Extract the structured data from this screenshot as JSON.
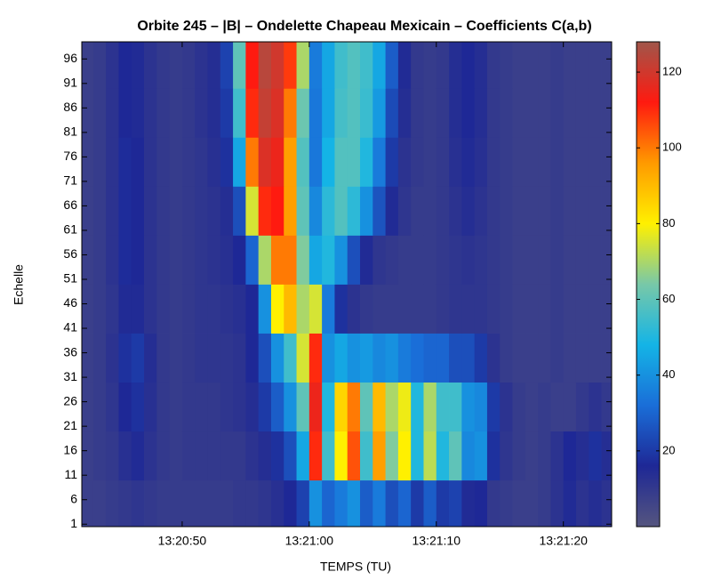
{
  "chart_data": {
    "type": "heatmap",
    "title": "Orbite 245 – |B| – Ondelette Chapeau Mexicain – Coefficients C(a,b)",
    "xlabel": "TEMPS (TU)",
    "ylabel": "Echelle",
    "xlim": [
      42.1,
      83.8
    ],
    "ylim": [
      0.5,
      99.5
    ],
    "xticks": [
      {
        "value": 50,
        "label": "13:20:50"
      },
      {
        "value": 60,
        "label": "13:21:00"
      },
      {
        "value": 70,
        "label": "13:21:10"
      },
      {
        "value": 80,
        "label": "13:21:20"
      }
    ],
    "yticks": [
      1,
      6,
      11,
      16,
      21,
      26,
      31,
      36,
      41,
      46,
      51,
      56,
      61,
      66,
      71,
      76,
      81,
      86,
      91,
      96
    ],
    "clim": [
      0,
      128
    ],
    "cticks": [
      20,
      40,
      60,
      80,
      100,
      120
    ],
    "colormap": [
      "#55557f",
      "#1e2896",
      "#1a6ed8",
      "#14b4e6",
      "#78c8a8",
      "#fff000",
      "#ff9a00",
      "#ff1a10",
      "#a0564a"
    ],
    "x_edges": [
      42,
      43,
      44,
      45,
      46,
      47,
      48,
      49,
      50,
      51,
      52,
      53,
      54,
      55,
      56,
      57,
      58,
      59,
      60,
      61,
      62,
      63,
      64,
      65,
      66,
      67,
      68,
      69,
      70,
      71,
      72,
      73,
      74,
      75,
      76,
      77,
      78,
      79,
      80,
      81,
      82,
      83,
      84
    ],
    "y_edges": [
      0,
      10,
      20,
      30,
      40,
      50,
      60,
      70,
      80,
      90,
      100
    ],
    "z": [
      [
        8,
        8,
        9,
        10,
        11,
        10,
        9,
        9,
        9,
        9,
        9,
        9,
        10,
        10,
        11,
        13,
        16,
        22,
        40,
        30,
        35,
        40,
        28,
        35,
        25,
        30,
        20,
        28,
        20,
        22,
        15,
        16,
        10,
        9,
        8,
        8,
        9,
        12,
        15,
        12,
        14,
        12
      ],
      [
        8,
        9,
        10,
        13,
        15,
        12,
        10,
        9,
        10,
        10,
        10,
        10,
        10,
        12,
        14,
        18,
        25,
        45,
        110,
        55,
        80,
        105,
        55,
        95,
        65,
        80,
        50,
        72,
        50,
        60,
        38,
        40,
        18,
        11,
        9,
        8,
        9,
        12,
        16,
        14,
        18,
        14
      ],
      [
        8,
        9,
        11,
        16,
        18,
        13,
        10,
        9,
        10,
        10,
        10,
        11,
        12,
        14,
        20,
        28,
        40,
        60,
        115,
        50,
        85,
        100,
        60,
        90,
        70,
        78,
        50,
        70,
        55,
        55,
        40,
        38,
        20,
        12,
        9,
        8,
        9,
        8,
        8,
        10,
        12,
        10
      ],
      [
        8,
        9,
        12,
        18,
        20,
        14,
        10,
        9,
        10,
        11,
        11,
        11,
        12,
        16,
        25,
        40,
        55,
        75,
        110,
        40,
        45,
        40,
        42,
        38,
        40,
        35,
        32,
        30,
        30,
        25,
        25,
        20,
        12,
        9,
        8,
        8,
        8,
        9,
        8,
        8,
        8,
        8
      ],
      [
        8,
        9,
        11,
        15,
        15,
        12,
        10,
        9,
        10,
        11,
        11,
        12,
        13,
        16,
        40,
        80,
        90,
        70,
        75,
        35,
        18,
        12,
        10,
        9,
        9,
        9,
        9,
        9,
        10,
        11,
        11,
        11,
        10,
        9,
        8,
        8,
        8,
        9,
        8,
        8,
        8,
        8
      ],
      [
        8,
        9,
        12,
        17,
        16,
        12,
        10,
        9,
        10,
        11,
        12,
        13,
        16,
        30,
        70,
        100,
        100,
        65,
        45,
        50,
        40,
        25,
        15,
        11,
        10,
        9,
        9,
        9,
        10,
        11,
        12,
        11,
        10,
        9,
        8,
        8,
        8,
        9,
        8,
        8,
        8,
        8
      ],
      [
        8,
        9,
        12,
        17,
        16,
        12,
        10,
        9,
        10,
        11,
        12,
        14,
        25,
        75,
        110,
        112,
        95,
        60,
        38,
        52,
        58,
        52,
        40,
        26,
        15,
        11,
        9,
        9,
        10,
        12,
        14,
        12,
        10,
        9,
        8,
        8,
        8,
        9,
        8,
        8,
        8,
        8
      ],
      [
        8,
        9,
        12,
        17,
        16,
        12,
        10,
        9,
        10,
        11,
        13,
        18,
        45,
        100,
        118,
        115,
        95,
        58,
        34,
        48,
        58,
        58,
        50,
        35,
        20,
        12,
        10,
        9,
        10,
        13,
        15,
        13,
        10,
        9,
        8,
        8,
        8,
        9,
        8,
        8,
        8,
        8
      ],
      [
        8,
        9,
        12,
        16,
        15,
        12,
        10,
        9,
        10,
        12,
        14,
        20,
        55,
        110,
        122,
        118,
        100,
        62,
        34,
        45,
        56,
        58,
        54,
        42,
        24,
        14,
        10,
        9,
        10,
        14,
        16,
        14,
        10,
        9,
        8,
        8,
        8,
        9,
        8,
        8,
        8,
        8
      ],
      [
        8,
        9,
        12,
        16,
        15,
        12,
        10,
        9,
        10,
        12,
        14,
        22,
        60,
        112,
        124,
        120,
        108,
        70,
        35,
        45,
        55,
        58,
        55,
        45,
        28,
        15,
        10,
        9,
        10,
        14,
        16,
        14,
        10,
        9,
        8,
        8,
        8,
        9,
        8,
        8,
        8,
        8
      ]
    ]
  }
}
